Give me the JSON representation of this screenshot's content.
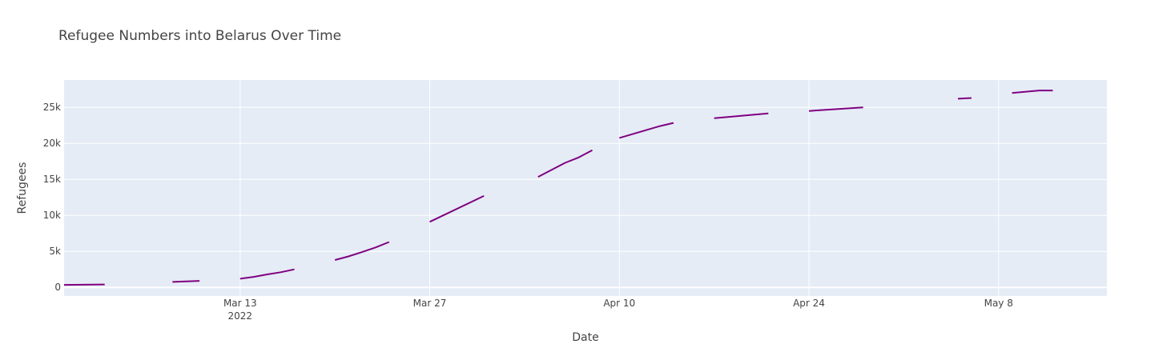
{
  "chart_data": {
    "type": "line",
    "title": "Refugee Numbers into Belarus Over Time",
    "xlabel": "Date",
    "ylabel": "Refugees",
    "x_type": "date",
    "xlim": [
      "2022-02-28",
      "2022-05-16"
    ],
    "ylim": [
      -1200,
      28800
    ],
    "x_ticks": [
      {
        "date": "2022-03-13",
        "label": "Mar 13",
        "sublabel": "2022"
      },
      {
        "date": "2022-03-27",
        "label": "Mar 27",
        "sublabel": ""
      },
      {
        "date": "2022-04-10",
        "label": "Apr 10",
        "sublabel": ""
      },
      {
        "date": "2022-04-24",
        "label": "Apr 24",
        "sublabel": ""
      },
      {
        "date": "2022-05-08",
        "label": "May 8",
        "sublabel": ""
      }
    ],
    "y_ticks": [
      {
        "value": 0,
        "label": "0"
      },
      {
        "value": 5000,
        "label": "5k"
      },
      {
        "value": 10000,
        "label": "10k"
      },
      {
        "value": 15000,
        "label": "15k"
      },
      {
        "value": 20000,
        "label": "20k"
      },
      {
        "value": 25000,
        "label": "25k"
      }
    ],
    "grid": true,
    "series": [
      {
        "color": "#800080",
        "points": [
          {
            "x": "2022-02-28",
            "y": 350
          },
          {
            "x": "2022-03-03",
            "y": 400
          },
          {
            "x": "2022-03-04",
            "y": null
          },
          {
            "x": "2022-03-08",
            "y": 750
          },
          {
            "x": "2022-03-10",
            "y": 900
          },
          {
            "x": "2022-03-11",
            "y": null
          },
          {
            "x": "2022-03-13",
            "y": 1200
          },
          {
            "x": "2022-03-14",
            "y": 1450
          },
          {
            "x": "2022-03-15",
            "y": 1800
          },
          {
            "x": "2022-03-16",
            "y": 2100
          },
          {
            "x": "2022-03-17",
            "y": 2500
          },
          {
            "x": "2022-03-18",
            "y": null
          },
          {
            "x": "2022-03-20",
            "y": 3800
          },
          {
            "x": "2022-03-21",
            "y": 4300
          },
          {
            "x": "2022-03-22",
            "y": 4900
          },
          {
            "x": "2022-03-23",
            "y": 5550
          },
          {
            "x": "2022-03-24",
            "y": 6300
          },
          {
            "x": "2022-03-25",
            "y": null
          },
          {
            "x": "2022-03-27",
            "y": 9100
          },
          {
            "x": "2022-03-31",
            "y": 12700
          },
          {
            "x": "2022-04-01",
            "y": null
          },
          {
            "x": "2022-04-04",
            "y": 15350
          },
          {
            "x": "2022-04-06",
            "y": 17300
          },
          {
            "x": "2022-04-07",
            "y": 18050
          },
          {
            "x": "2022-04-08",
            "y": 19050
          },
          {
            "x": "2022-04-09",
            "y": null
          },
          {
            "x": "2022-04-10",
            "y": 20750
          },
          {
            "x": "2022-04-13",
            "y": 22400
          },
          {
            "x": "2022-04-14",
            "y": 22850
          },
          {
            "x": "2022-04-15",
            "y": null
          },
          {
            "x": "2022-04-17",
            "y": 23500
          },
          {
            "x": "2022-04-21",
            "y": 24150
          },
          {
            "x": "2022-04-22",
            "y": null
          },
          {
            "x": "2022-04-24",
            "y": 24500
          },
          {
            "x": "2022-04-28",
            "y": 25000
          },
          {
            "x": "2022-04-29",
            "y": null
          },
          {
            "x": "2022-05-05",
            "y": 26200
          },
          {
            "x": "2022-05-06",
            "y": 26300
          },
          {
            "x": "2022-05-07",
            "y": null
          },
          {
            "x": "2022-05-09",
            "y": 27000
          },
          {
            "x": "2022-05-11",
            "y": 27350
          },
          {
            "x": "2022-05-12",
            "y": 27350
          }
        ]
      }
    ]
  }
}
